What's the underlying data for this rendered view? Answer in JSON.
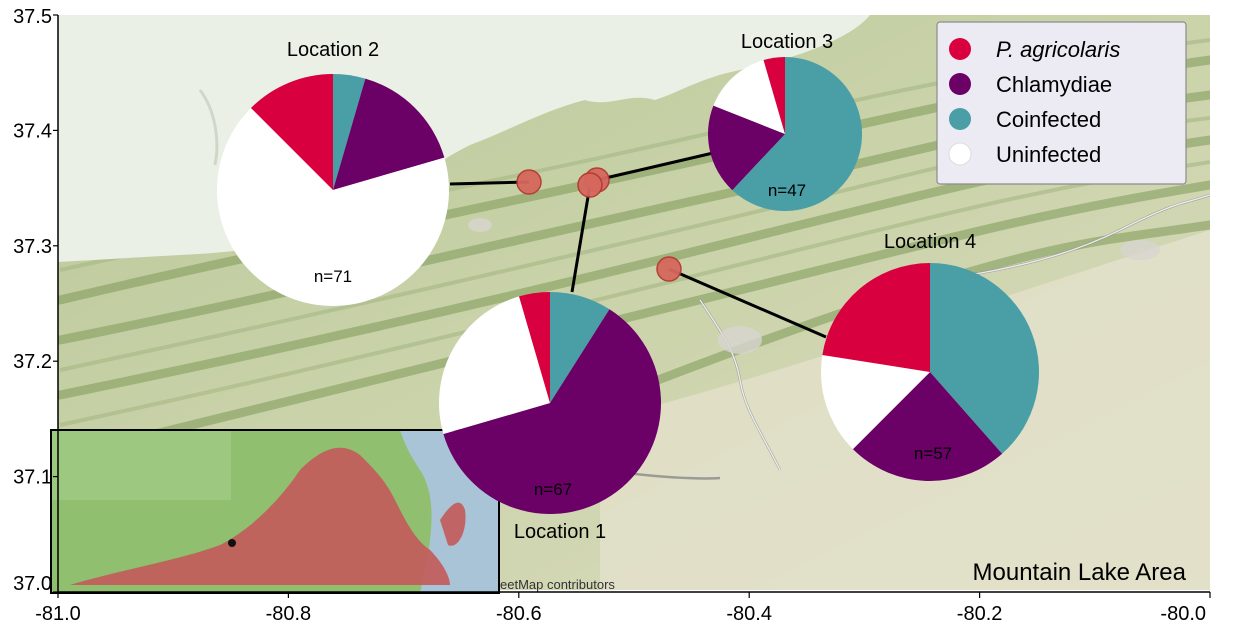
{
  "map": {
    "area_label": "Mountain Lake Area",
    "credit": "eetMap contributors",
    "x_axis": {
      "ticks": [
        "-81.0",
        "-80.8",
        "-80.6",
        "-80.4",
        "-80.2",
        "-80.0"
      ]
    },
    "y_axis": {
      "ticks": [
        "37.5",
        "37.4",
        "37.3",
        "37.2",
        "37.1",
        "37.0"
      ]
    },
    "colors": {
      "p_agricolaris": "#d9003f",
      "chlamydiae": "#6b0066",
      "coinfected": "#4a9ea6",
      "uninfected": "#ffffff",
      "site_marker": "#d6675d"
    }
  },
  "legend": {
    "items": [
      {
        "label": "P. agricolaris",
        "color": "#d9003f",
        "italic": true
      },
      {
        "label": "Chlamydiae",
        "color": "#6b0066",
        "italic": false
      },
      {
        "label": "Coinfected",
        "color": "#4a9ea6",
        "italic": false
      },
      {
        "label": "Uninfected",
        "color": "#ffffff",
        "italic": false
      }
    ]
  },
  "chart_data": {
    "type": "pie",
    "categories": [
      "P. agricolaris",
      "Chlamydiae",
      "Coinfected",
      "Uninfected"
    ],
    "locations": [
      {
        "name": "Location 2",
        "n_label": "n=71",
        "n": 71,
        "lon": -80.635,
        "lat": 37.357,
        "fractions": {
          "P. agricolaris": 0.125,
          "Chlamydiae": 0.16,
          "Coinfected": 0.045,
          "Uninfected": 0.67
        }
      },
      {
        "name": "Location 3",
        "n_label": "n=47",
        "n": 47,
        "lon": -80.535,
        "lat": 37.358,
        "fractions": {
          "P. agricolaris": 0.045,
          "Chlamydiae": 0.19,
          "Coinfected": 0.62,
          "Uninfected": 0.145
        }
      },
      {
        "name": "Location 1",
        "n_label": "n=67",
        "n": 67,
        "lon": -80.54,
        "lat": 37.355,
        "fractions": {
          "P. agricolaris": 0.045,
          "Chlamydiae": 0.615,
          "Coinfected": 0.09,
          "Uninfected": 0.25
        }
      },
      {
        "name": "Location 4",
        "n_label": "n=57",
        "n": 57,
        "lon": -80.465,
        "lat": 37.281,
        "fractions": {
          "P. agricolaris": 0.225,
          "Chlamydiae": 0.24,
          "Coinfected": 0.385,
          "Uninfected": 0.15
        }
      }
    ],
    "xlim": [
      -81.0,
      -80.0
    ],
    "ylim": [
      37.0,
      37.5
    ]
  }
}
